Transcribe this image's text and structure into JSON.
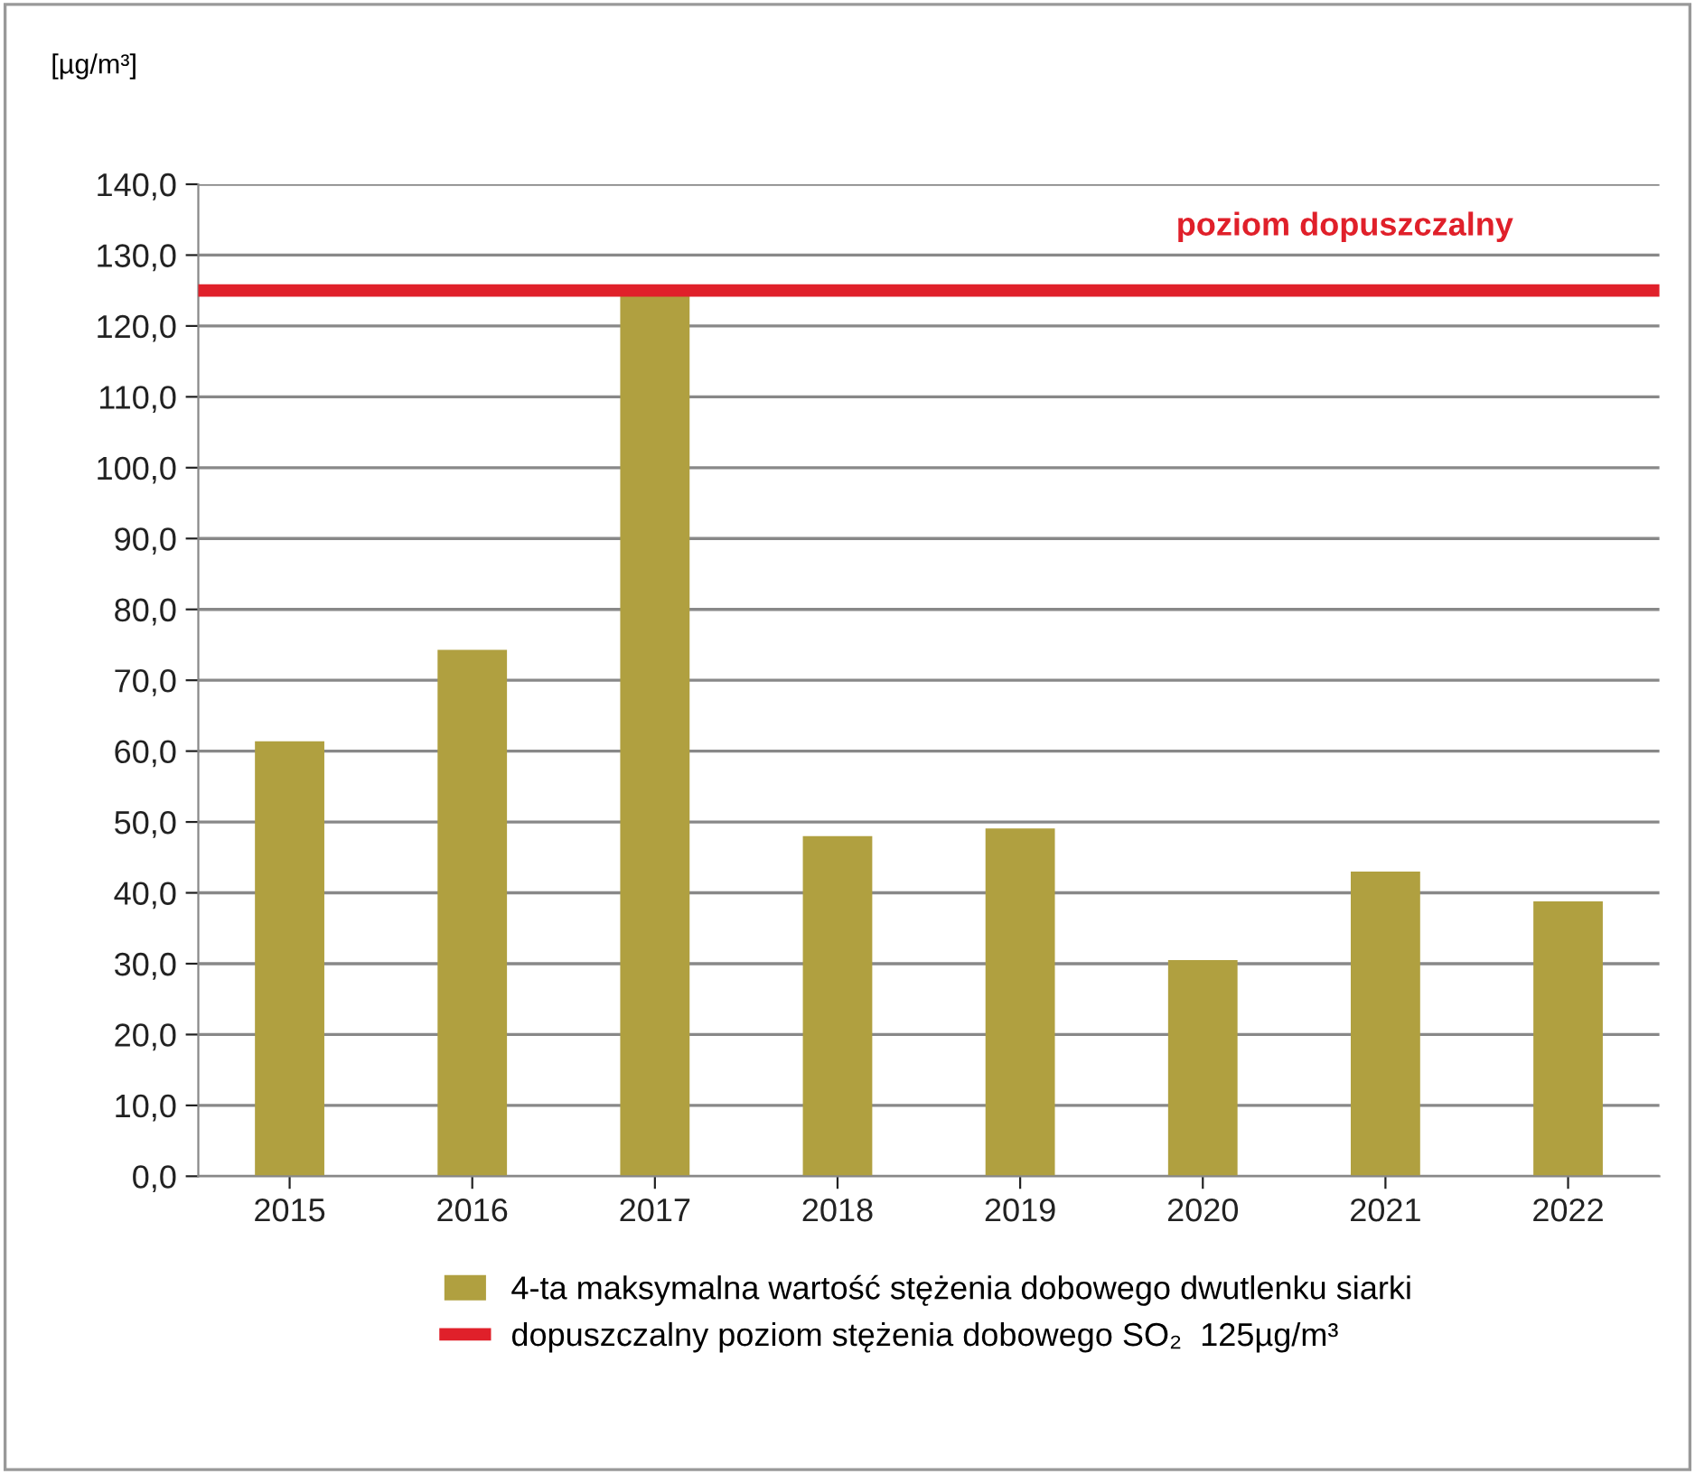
{
  "chart_data": {
    "type": "bar",
    "ylabel": "[µg/m³]",
    "categories": [
      "2015",
      "2016",
      "2017",
      "2018",
      "2019",
      "2020",
      "2021",
      "2022"
    ],
    "series": [
      {
        "name": "4-ta maksymalna wartość stężenia dobowego dwutlenku siarki",
        "color": "#b0a040",
        "values": [
          61.4,
          74.3,
          124.5,
          48.0,
          49.1,
          30.5,
          43.0,
          38.8
        ]
      }
    ],
    "ylim": [
      0,
      140
    ],
    "yticks": [
      {
        "value": 0,
        "label": "0,0"
      },
      {
        "value": 10,
        "label": "10,0"
      },
      {
        "value": 20,
        "label": "20,0"
      },
      {
        "value": 30,
        "label": "30,0"
      },
      {
        "value": 40,
        "label": "40,0"
      },
      {
        "value": 50,
        "label": "50,0"
      },
      {
        "value": 60,
        "label": "60,0"
      },
      {
        "value": 70,
        "label": "70,0"
      },
      {
        "value": 80,
        "label": "80,0"
      },
      {
        "value": 90,
        "label": "90,0"
      },
      {
        "value": 100,
        "label": "100,0"
      },
      {
        "value": 110,
        "label": "110,0"
      },
      {
        "value": 120,
        "label": "120,0"
      },
      {
        "value": 130,
        "label": "130,0"
      },
      {
        "value": 140,
        "label": "140,0"
      }
    ],
    "ref_lines": [
      {
        "axis": "y",
        "value": 125,
        "label": "dopuszczalny poziom stężenia dobowego SO₂  125µg/m³",
        "color": "#e0202a",
        "line_style": "solid"
      }
    ],
    "annotations": [
      "poziom dopuszczalny"
    ],
    "grid": "y",
    "legend": "bottom"
  }
}
